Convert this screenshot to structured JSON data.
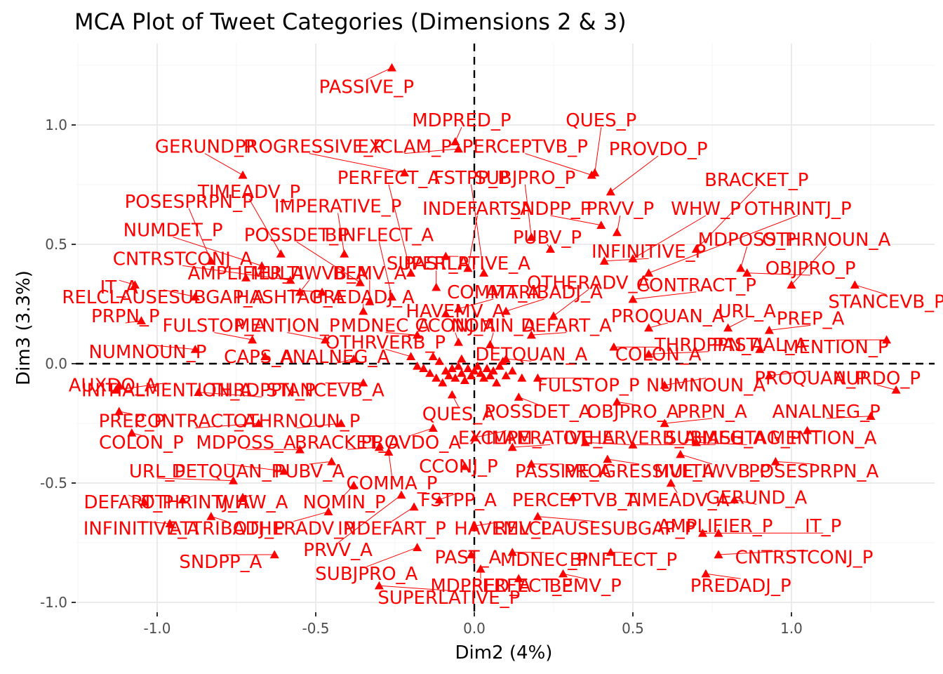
{
  "chart_data": {
    "type": "scatter",
    "title": "MCA Plot of Tweet Categories (Dimensions 2 & 3)",
    "xlabel": "Dim2 (4%)",
    "ylabel": "Dim3 (3.3%)",
    "xlim": [
      -1.25,
      1.45
    ],
    "ylim": [
      -1.05,
      1.3
    ],
    "xticks": [
      -1.0,
      -0.5,
      0.0,
      0.5,
      1.0
    ],
    "xtick_labels": [
      "-1.0",
      "-0.5",
      "0.0",
      "0.5",
      "1.0"
    ],
    "yticks": [
      -1.0,
      -0.5,
      0.0,
      0.5,
      1.0
    ],
    "ytick_labels": [
      "-1.0",
      "-0.5",
      "0.0",
      "0.5",
      "1.0"
    ],
    "grid": true,
    "reference_lines": {
      "x": 0,
      "y": 0
    },
    "color": "#ff0000",
    "points": [
      {
        "label": "PASSIVE_P",
        "x": -0.26,
        "y": 1.24,
        "lx": -0.34,
        "ly": 1.16
      },
      {
        "label": "MDPRED_P",
        "x": -0.06,
        "y": 0.93,
        "lx": -0.04,
        "ly": 1.02
      },
      {
        "label": "QUES_P",
        "x": 0.38,
        "y": 0.8,
        "lx": 0.4,
        "ly": 1.02
      },
      {
        "label": "PROVDO_P",
        "x": 0.43,
        "y": 0.72,
        "lx": 0.58,
        "ly": 0.9
      },
      {
        "label": "PERCEPTVB_P",
        "x": 0.37,
        "y": 0.79,
        "lx": 0.16,
        "ly": 0.91
      },
      {
        "label": "EXCLAM_P",
        "x": -0.05,
        "y": 0.9,
        "lx": -0.22,
        "ly": 0.91
      },
      {
        "label": "PROGRESSIVE_P",
        "x": -0.22,
        "y": 0.8,
        "lx": -0.52,
        "ly": 0.91
      },
      {
        "label": "GERUND_P",
        "x": -0.73,
        "y": 0.79,
        "lx": -0.85,
        "ly": 0.91
      },
      {
        "label": "BRACKET_P",
        "x": 0.7,
        "y": 0.48,
        "lx": 0.89,
        "ly": 0.77
      },
      {
        "label": "SUBJPRO_P",
        "x": 0.18,
        "y": 0.53,
        "lx": 0.16,
        "ly": 0.78
      },
      {
        "label": "FSTPP_P",
        "x": 0.03,
        "y": 0.38,
        "lx": -0.01,
        "ly": 0.78
      },
      {
        "label": "PERFECT_A",
        "x": -0.2,
        "y": 0.38,
        "lx": -0.27,
        "ly": 0.78
      },
      {
        "label": "TIMEADV_P",
        "x": -0.61,
        "y": 0.46,
        "lx": -0.71,
        "ly": 0.72
      },
      {
        "label": "POSESPRPN_P",
        "x": -0.83,
        "y": 0.43,
        "lx": -0.9,
        "ly": 0.68
      },
      {
        "label": "IMPERATIVE_P",
        "x": -0.41,
        "y": 0.46,
        "lx": -0.43,
        "ly": 0.66
      },
      {
        "label": "INDEFART_A",
        "x": -0.02,
        "y": 0.4,
        "lx": 0.01,
        "ly": 0.65
      },
      {
        "label": "SNDPP_P",
        "x": 0.4,
        "y": 0.58,
        "lx": 0.24,
        "ly": 0.65
      },
      {
        "label": "PRVV_P",
        "x": 0.45,
        "y": 0.55,
        "lx": 0.46,
        "ly": 0.65
      },
      {
        "label": "WHW_P",
        "x": 0.5,
        "y": 0.44,
        "lx": 0.73,
        "ly": 0.65
      },
      {
        "label": "OTHRINTJ_P",
        "x": 0.55,
        "y": 0.38,
        "lx": 1.02,
        "ly": 0.65
      },
      {
        "label": "NUMDET_P",
        "x": -0.67,
        "y": 0.41,
        "lx": -0.95,
        "ly": 0.56
      },
      {
        "label": "POSSDET_P",
        "x": -0.36,
        "y": 0.34,
        "lx": -0.56,
        "ly": 0.54
      },
      {
        "label": "BINFLECT_A",
        "x": -0.26,
        "y": 0.28,
        "lx": -0.3,
        "ly": 0.54
      },
      {
        "label": "PUBV_P",
        "x": 0.24,
        "y": 0.48,
        "lx": 0.23,
        "ly": 0.53
      },
      {
        "label": "MDPOSS_P",
        "x": 0.84,
        "y": 0.4,
        "lx": 0.86,
        "ly": 0.52
      },
      {
        "label": "OTHRNOUN_A",
        "x": 1.0,
        "y": 0.33,
        "lx": 1.11,
        "ly": 0.52
      },
      {
        "label": "INFINITIVE_P",
        "x": 0.41,
        "y": 0.43,
        "lx": 0.55,
        "ly": 0.47
      },
      {
        "label": "CNTRSTCONJ_A",
        "x": -0.58,
        "y": 0.35,
        "lx": -0.92,
        "ly": 0.44
      },
      {
        "label": "SUPERLATIVE_A",
        "x": -0.09,
        "y": 0.45,
        "lx": -0.05,
        "ly": 0.42
      },
      {
        "label": "AMPLIFIER_A",
        "x": -0.72,
        "y": 0.36,
        "lx": -0.72,
        "ly": 0.38
      },
      {
        "label": "MULTIWVB_A",
        "x": -0.55,
        "y": 0.3,
        "lx": -0.52,
        "ly": 0.38
      },
      {
        "label": "BEMV_A",
        "x": -0.33,
        "y": 0.26,
        "lx": -0.33,
        "ly": 0.38
      },
      {
        "label": "PAST_P",
        "x": -0.12,
        "y": 0.32,
        "lx": -0.12,
        "ly": 0.42
      },
      {
        "label": "OBJPRO_P",
        "x": 0.86,
        "y": 0.38,
        "lx": 1.06,
        "ly": 0.4
      },
      {
        "label": "STANCEVB_P",
        "x": 1.2,
        "y": 0.33,
        "lx": 1.3,
        "ly": 0.26
      },
      {
        "label": "IT_A",
        "x": -1.07,
        "y": 0.33,
        "lx": -1.12,
        "ly": 0.32
      },
      {
        "label": "RELCLAUSESUBGAP_A",
        "x": -0.88,
        "y": 0.28,
        "lx": -0.98,
        "ly": 0.28
      },
      {
        "label": "HASHTAG_A",
        "x": -0.48,
        "y": 0.3,
        "lx": -0.58,
        "ly": 0.28
      },
      {
        "label": "PREDADJ_A",
        "x": -0.35,
        "y": 0.22,
        "lx": -0.35,
        "ly": 0.28
      },
      {
        "label": "COMMA_A",
        "x": -0.05,
        "y": 0.23,
        "lx": 0.06,
        "ly": 0.3
      },
      {
        "label": "ATTRIBADJ_A",
        "x": 0.1,
        "y": 0.22,
        "lx": 0.22,
        "ly": 0.3
      },
      {
        "label": "OTHERADV_A",
        "x": 0.25,
        "y": 0.2,
        "lx": 0.36,
        "ly": 0.34
      },
      {
        "label": "CONTRACT_P",
        "x": 0.5,
        "y": 0.27,
        "lx": 0.7,
        "ly": 0.33
      },
      {
        "label": "HAVEMV_A",
        "x": -0.09,
        "y": 0.21,
        "lx": -0.06,
        "ly": 0.22
      },
      {
        "label": "PRPN_P",
        "x": -1.05,
        "y": 0.18,
        "lx": -1.1,
        "ly": 0.2
      },
      {
        "label": "PROQUAN_A",
        "x": 0.55,
        "y": 0.15,
        "lx": 0.61,
        "ly": 0.2
      },
      {
        "label": "URL_A",
        "x": 0.8,
        "y": 0.15,
        "lx": 0.86,
        "ly": 0.22
      },
      {
        "label": "PREP_A",
        "x": 0.93,
        "y": 0.14,
        "lx": 1.06,
        "ly": 0.19
      },
      {
        "label": "FULSTOP_A",
        "x": -0.7,
        "y": 0.1,
        "lx": -0.82,
        "ly": 0.16
      },
      {
        "label": "MENTION_P",
        "x": -0.47,
        "y": 0.1,
        "lx": -0.59,
        "ly": 0.16
      },
      {
        "label": "MDNEC_A",
        "x": -0.18,
        "y": 0.12,
        "lx": -0.28,
        "ly": 0.16
      },
      {
        "label": "CCONJ_A",
        "x": -0.05,
        "y": 0.09,
        "lx": -0.06,
        "ly": 0.16
      },
      {
        "label": "NOMIN_A",
        "x": 0.05,
        "y": 0.08,
        "lx": 0.06,
        "ly": 0.16
      },
      {
        "label": "DEFART_A",
        "x": 0.18,
        "y": 0.12,
        "lx": 0.29,
        "ly": 0.16
      },
      {
        "label": "OTHRVERB_P",
        "x": -0.2,
        "y": 0.03,
        "lx": -0.28,
        "ly": 0.09
      },
      {
        "label": "THRDPPN_A",
        "x": 0.55,
        "y": 0.04,
        "lx": 0.74,
        "ly": 0.08
      },
      {
        "label": "PASTIAL_A",
        "x": 0.9,
        "y": 0.06,
        "lx": 0.9,
        "ly": 0.08
      },
      {
        "label": "MENTION_P",
        "x": 1.3,
        "y": 0.1,
        "lx": 1.14,
        "ly": 0.07
      },
      {
        "label": "NUMNOUN_P",
        "x": -0.88,
        "y": 0.06,
        "lx": -1.03,
        "ly": 0.05
      },
      {
        "label": "CAPS_A",
        "x": -0.66,
        "y": 0.03,
        "lx": -0.68,
        "ly": 0.03
      },
      {
        "label": "ANALNEG_A",
        "x": -0.38,
        "y": 0.02,
        "lx": -0.44,
        "ly": 0.03
      },
      {
        "label": "DETQUAN_A",
        "x": 0.1,
        "y": 0.02,
        "lx": 0.18,
        "ly": 0.04
      },
      {
        "label": "COLON_A",
        "x": 0.44,
        "y": 0.07,
        "lx": 0.58,
        "ly": 0.04
      },
      {
        "label": "PROQUAN_P",
        "x": 0.93,
        "y": -0.05,
        "lx": 1.06,
        "ly": -0.06
      },
      {
        "label": "AURDO_P",
        "x": 1.33,
        "y": -0.11,
        "lx": 1.27,
        "ly": -0.06
      },
      {
        "label": "AUXDO_A",
        "x": -1.12,
        "y": -0.09,
        "lx": -1.14,
        "ly": -0.09
      },
      {
        "label": "INITIALMENTION_A",
        "x": -1.13,
        "y": -0.11,
        "lx": -0.97,
        "ly": -0.11
      },
      {
        "label": "THRDPPN_P",
        "x": -0.87,
        "y": -0.12,
        "lx": -0.67,
        "ly": -0.11
      },
      {
        "label": "STANCEVB_A",
        "x": -0.35,
        "y": -0.08,
        "lx": -0.47,
        "ly": -0.11
      },
      {
        "label": "FULSTOP_P",
        "x": 0.2,
        "y": -0.06,
        "lx": 0.36,
        "ly": -0.09
      },
      {
        "label": "NUMNOUN_A",
        "x": 0.6,
        "y": -0.09,
        "lx": 0.73,
        "ly": -0.09
      },
      {
        "label": "PREP_P",
        "x": -1.12,
        "y": -0.2,
        "lx": -1.08,
        "ly": -0.24
      },
      {
        "label": "CONTRACT_A",
        "x": -0.68,
        "y": -0.25,
        "lx": -0.88,
        "ly": -0.24
      },
      {
        "label": "OTHRNOUN_P",
        "x": -0.42,
        "y": -0.25,
        "lx": -0.56,
        "ly": -0.24
      },
      {
        "label": "QUES_A",
        "x": -0.07,
        "y": -0.13,
        "lx": -0.05,
        "ly": -0.21
      },
      {
        "label": "POSSDET_A",
        "x": 0.14,
        "y": -0.14,
        "lx": 0.2,
        "ly": -0.2
      },
      {
        "label": "OBJPRO_A",
        "x": 0.45,
        "y": -0.16,
        "lx": 0.5,
        "ly": -0.2
      },
      {
        "label": "PRPN_A",
        "x": 0.6,
        "y": -0.25,
        "lx": 0.75,
        "ly": -0.2
      },
      {
        "label": "ANALNEG_P",
        "x": 1.25,
        "y": -0.22,
        "lx": 1.11,
        "ly": -0.2
      },
      {
        "label": "COLON_P",
        "x": -1.08,
        "y": -0.29,
        "lx": -1.05,
        "ly": -0.33
      },
      {
        "label": "MDPOSS_A",
        "x": -0.55,
        "y": -0.36,
        "lx": -0.72,
        "ly": -0.33
      },
      {
        "label": "BRACKET_A",
        "x": -0.3,
        "y": -0.35,
        "lx": -0.4,
        "ly": -0.33
      },
      {
        "label": "PROVDO_A",
        "x": -0.13,
        "y": -0.27,
        "lx": -0.2,
        "ly": -0.33
      },
      {
        "label": "EXCLAM_A",
        "x": 0.0,
        "y": -0.31,
        "lx": 0.1,
        "ly": -0.31
      },
      {
        "label": "IMPERATIVE_A",
        "x": 0.12,
        "y": -0.35,
        "lx": 0.24,
        "ly": -0.31
      },
      {
        "label": "OTHERVERB_A",
        "x": 0.35,
        "y": -0.33,
        "lx": 0.49,
        "ly": -0.31
      },
      {
        "label": "SUBMEG_A",
        "x": 0.5,
        "y": -0.34,
        "lx": 0.76,
        "ly": -0.31
      },
      {
        "label": "HASHTAG_P",
        "x": 0.7,
        "y": -0.33,
        "lx": 0.86,
        "ly": -0.31
      },
      {
        "label": "MENTION_A",
        "x": 1.05,
        "y": -0.28,
        "lx": 1.1,
        "ly": -0.31
      },
      {
        "label": "URL_P",
        "x": -0.76,
        "y": -0.49,
        "lx": -1.0,
        "ly": -0.45
      },
      {
        "label": "DETQUAN_P",
        "x": -0.6,
        "y": -0.45,
        "lx": -0.78,
        "ly": -0.45
      },
      {
        "label": "PUBV_A",
        "x": -0.45,
        "y": -0.41,
        "lx": -0.52,
        "ly": -0.45
      },
      {
        "label": "CCONJ_P",
        "x": -0.03,
        "y": -0.43,
        "lx": -0.05,
        "ly": -0.43
      },
      {
        "label": "PASSIVE_A",
        "x": 0.18,
        "y": -0.42,
        "lx": 0.28,
        "ly": -0.45
      },
      {
        "label": "PROGRESSIVE_A",
        "x": 0.42,
        "y": -0.4,
        "lx": 0.52,
        "ly": -0.45
      },
      {
        "label": "MULTIWVB_P",
        "x": 0.65,
        "y": -0.38,
        "lx": 0.75,
        "ly": -0.45
      },
      {
        "label": "POSESPRPN_A",
        "x": 0.95,
        "y": -0.41,
        "lx": 1.07,
        "ly": -0.45
      },
      {
        "label": "COMMA_P",
        "x": -0.27,
        "y": -0.37,
        "lx": -0.26,
        "ly": -0.5
      },
      {
        "label": "DEFART_P",
        "x": -1.04,
        "y": -0.58,
        "lx": -1.09,
        "ly": -0.58
      },
      {
        "label": "OTHRINTJ_A",
        "x": -0.92,
        "y": -0.57,
        "lx": -0.88,
        "ly": -0.58
      },
      {
        "label": "WHW_A",
        "x": -0.73,
        "y": -0.56,
        "lx": -0.7,
        "ly": -0.58
      },
      {
        "label": "NOMIN_P",
        "x": -0.38,
        "y": -0.51,
        "lx": -0.41,
        "ly": -0.58
      },
      {
        "label": "FSTPP_A",
        "x": -0.11,
        "y": -0.57,
        "lx": -0.05,
        "ly": -0.57
      },
      {
        "label": "PERCEPTVB_A",
        "x": 0.31,
        "y": -0.56,
        "lx": 0.32,
        "ly": -0.57
      },
      {
        "label": "TIMEADV_A",
        "x": 0.62,
        "y": -0.5,
        "lx": 0.64,
        "ly": -0.57
      },
      {
        "label": "GERUND_A",
        "x": 0.82,
        "y": -0.57,
        "lx": 0.89,
        "ly": -0.56
      },
      {
        "label": "INFINITIVE_A",
        "x": -0.96,
        "y": -0.67,
        "lx": -1.05,
        "ly": -0.69
      },
      {
        "label": "ATTRIBADJ_P",
        "x": -0.83,
        "y": -0.64,
        "lx": -0.78,
        "ly": -0.69
      },
      {
        "label": "OTHERADV_P",
        "x": -0.46,
        "y": -0.62,
        "lx": -0.57,
        "ly": -0.69
      },
      {
        "label": "INDEFART_P",
        "x": -0.19,
        "y": -0.6,
        "lx": -0.26,
        "ly": -0.69
      },
      {
        "label": "HAVEMV_P",
        "x": 0.0,
        "y": -0.68,
        "lx": 0.09,
        "ly": -0.69
      },
      {
        "label": "RELCLAUSESUBGAP_P",
        "x": 0.2,
        "y": -0.64,
        "lx": 0.38,
        "ly": -0.69
      },
      {
        "label": "AMPLIFIER_P",
        "x": 0.72,
        "y": -0.71,
        "lx": 0.76,
        "ly": -0.68
      },
      {
        "label": "IT_P",
        "x": 0.77,
        "y": -0.71,
        "lx": 1.1,
        "ly": -0.68
      },
      {
        "label": "PRVV_A",
        "x": -0.23,
        "y": -0.55,
        "lx": -0.43,
        "ly": -0.78
      },
      {
        "label": "SNDPP_A",
        "x": -0.63,
        "y": -0.8,
        "lx": -0.8,
        "ly": -0.83
      },
      {
        "label": "SUBJPRO_A",
        "x": -0.18,
        "y": -0.77,
        "lx": -0.34,
        "ly": -0.88
      },
      {
        "label": "PAST_A",
        "x": -0.01,
        "y": -0.8,
        "lx": -0.02,
        "ly": -0.81
      },
      {
        "label": "MDNEC_P",
        "x": 0.12,
        "y": -0.79,
        "lx": 0.22,
        "ly": -0.82
      },
      {
        "label": "BINFLECT_P",
        "x": 0.43,
        "y": -0.79,
        "lx": 0.47,
        "ly": -0.82
      },
      {
        "label": "CNTRSTCONJ_P",
        "x": 0.77,
        "y": -0.8,
        "lx": 1.04,
        "ly": -0.81
      },
      {
        "label": "PREDADJ_P",
        "x": 0.73,
        "y": -0.88,
        "lx": 0.84,
        "ly": -0.93
      },
      {
        "label": "MDPRED_A",
        "x": 0.02,
        "y": -0.86,
        "lx": 0.02,
        "ly": -0.93
      },
      {
        "label": "PERFECT_P",
        "x": 0.14,
        "y": -0.9,
        "lx": 0.15,
        "ly": -0.93
      },
      {
        "label": "BEMV_P",
        "x": 0.28,
        "y": -0.88,
        "lx": 0.35,
        "ly": -0.93
      },
      {
        "label": "SUPERLATIVE_P",
        "x": -0.3,
        "y": -0.93,
        "lx": -0.08,
        "ly": -0.98
      }
    ],
    "center_points": [
      [
        -0.18,
        -0.01
      ],
      [
        -0.16,
        -0.02
      ],
      [
        -0.14,
        -0.04
      ],
      [
        -0.12,
        -0.06
      ],
      [
        -0.11,
        0.01
      ],
      [
        -0.09,
        -0.03
      ],
      [
        -0.08,
        -0.05
      ],
      [
        -0.07,
        -0.02
      ],
      [
        -0.06,
        -0.06
      ],
      [
        -0.05,
        -0.01
      ],
      [
        -0.04,
        -0.04
      ],
      [
        -0.03,
        -0.07
      ],
      [
        -0.02,
        -0.02
      ],
      [
        -0.01,
        -0.05
      ],
      [
        0.0,
        -0.03
      ],
      [
        0.01,
        -0.01
      ],
      [
        0.02,
        -0.04
      ],
      [
        0.03,
        -0.06
      ],
      [
        0.04,
        -0.02
      ],
      [
        0.05,
        -0.05
      ],
      [
        0.06,
        -0.03
      ],
      [
        0.08,
        -0.01
      ],
      [
        0.1,
        -0.05
      ],
      [
        0.12,
        -0.03
      ],
      [
        0.15,
        -0.06
      ],
      [
        -0.13,
        0.03
      ],
      [
        -0.1,
        -0.08
      ],
      [
        0.07,
        -0.08
      ],
      [
        -0.04,
        0.02
      ],
      [
        0.09,
        0.01
      ]
    ]
  }
}
